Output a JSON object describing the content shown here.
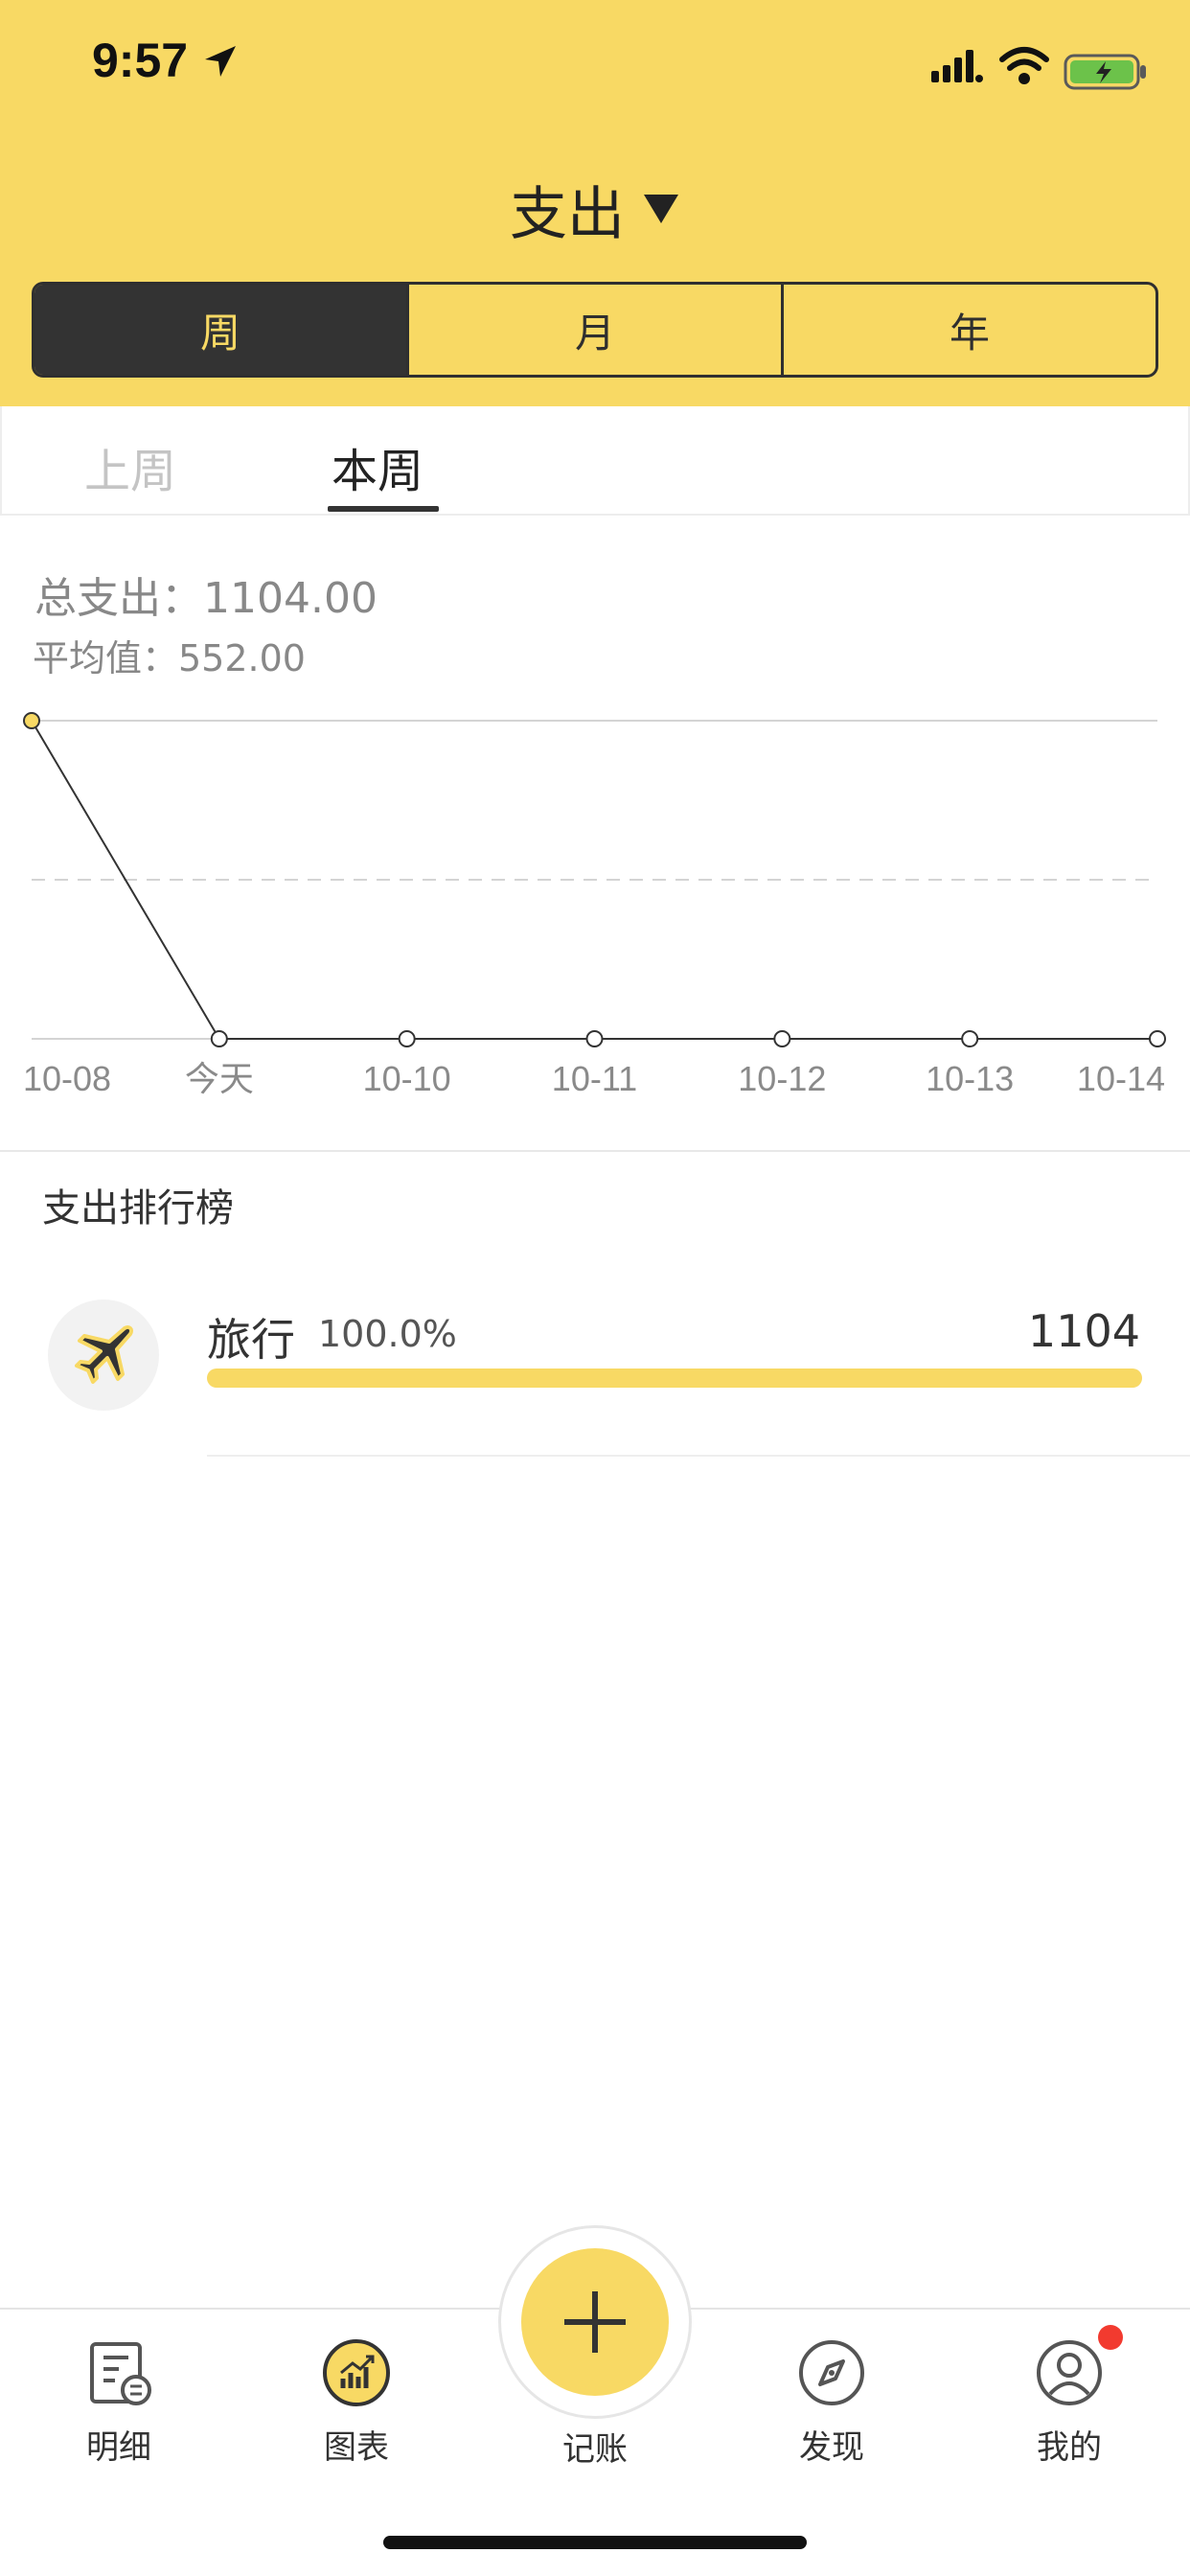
{
  "status_bar": {
    "time": "9:57"
  },
  "header": {
    "title": "支出",
    "segments": [
      "周",
      "月",
      "年"
    ],
    "active_segment": 0
  },
  "subtabs": {
    "prev": "上周",
    "current": "本周"
  },
  "summary": {
    "total": "总支出：1104.00",
    "average": "平均值：552.00"
  },
  "chart_data": {
    "type": "line",
    "categories": [
      "10-08",
      "今天",
      "10-10",
      "10-11",
      "10-12",
      "10-13",
      "10-14"
    ],
    "series": [
      {
        "values": [
          1104,
          0,
          0,
          0,
          0,
          0,
          0
        ]
      }
    ],
    "ylim": [
      0,
      1104
    ],
    "reference_line": 552,
    "grid": false,
    "colors": {
      "line": "#333333",
      "highlight_point": "#f8d964"
    }
  },
  "ranking": {
    "title": "支出排行榜",
    "items": [
      {
        "name": "旅行",
        "percent": "100.0%",
        "amount": "1104",
        "fraction": 1.0,
        "icon": "airplane-icon"
      }
    ]
  },
  "tabbar": {
    "items": [
      {
        "label": "明细",
        "icon": "ledger-icon"
      },
      {
        "label": "图表",
        "icon": "chart-icon"
      },
      {
        "label": "记账",
        "icon": "plus-icon"
      },
      {
        "label": "发现",
        "icon": "compass-icon"
      },
      {
        "label": "我的",
        "icon": "user-icon"
      }
    ]
  },
  "colors": {
    "accent": "#f8d964",
    "dark": "#333333",
    "badge": "#f23a2f"
  }
}
